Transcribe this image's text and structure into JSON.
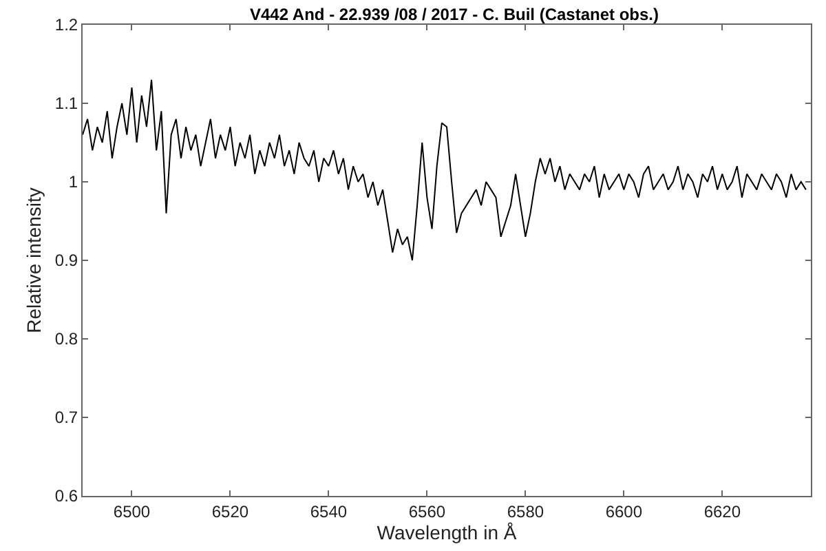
{
  "chart_data": {
    "type": "line",
    "title": "V442 And - 22.939 /08 / 2017 - C. Buil (Castanet obs.)",
    "xlabel": "Wavelength in Å",
    "ylabel": "Relative intensity",
    "x": [
      6490,
      6491,
      6492,
      6493,
      6494,
      6495,
      6496,
      6497,
      6498,
      6499,
      6500,
      6501,
      6502,
      6503,
      6504,
      6505,
      6506,
      6507,
      6508,
      6509,
      6510,
      6511,
      6512,
      6513,
      6514,
      6515,
      6516,
      6517,
      6518,
      6519,
      6520,
      6521,
      6522,
      6523,
      6524,
      6525,
      6526,
      6527,
      6528,
      6529,
      6530,
      6531,
      6532,
      6533,
      6534,
      6535,
      6536,
      6537,
      6538,
      6539,
      6540,
      6541,
      6542,
      6543,
      6544,
      6545,
      6546,
      6547,
      6548,
      6549,
      6550,
      6551,
      6552,
      6553,
      6554,
      6555,
      6556,
      6557,
      6558,
      6559,
      6560,
      6561,
      6562,
      6563,
      6564,
      6565,
      6566,
      6567,
      6568,
      6569,
      6570,
      6571,
      6572,
      6573,
      6574,
      6575,
      6576,
      6577,
      6578,
      6579,
      6580,
      6581,
      6582,
      6583,
      6584,
      6585,
      6586,
      6587,
      6588,
      6589,
      6590,
      6591,
      6592,
      6593,
      6594,
      6595,
      6596,
      6597,
      6598,
      6599,
      6600,
      6601,
      6602,
      6603,
      6604,
      6605,
      6606,
      6607,
      6608,
      6609,
      6610,
      6611,
      6612,
      6613,
      6614,
      6615,
      6616,
      6617,
      6618,
      6619,
      6620,
      6621,
      6622,
      6623,
      6624,
      6625,
      6626,
      6627,
      6628,
      6629,
      6630,
      6631,
      6632,
      6633,
      6634,
      6635,
      6636,
      6637
    ],
    "series": [
      {
        "color": "#000000",
        "values": [
          1.06,
          1.08,
          1.04,
          1.07,
          1.05,
          1.09,
          1.03,
          1.07,
          1.1,
          1.06,
          1.12,
          1.05,
          1.11,
          1.07,
          1.13,
          1.04,
          1.09,
          0.96,
          1.06,
          1.08,
          1.03,
          1.07,
          1.04,
          1.06,
          1.02,
          1.05,
          1.08,
          1.03,
          1.06,
          1.04,
          1.07,
          1.02,
          1.05,
          1.03,
          1.06,
          1.01,
          1.04,
          1.02,
          1.05,
          1.03,
          1.06,
          1.02,
          1.04,
          1.01,
          1.05,
          1.03,
          1.02,
          1.04,
          1.0,
          1.03,
          1.02,
          1.04,
          1.01,
          1.03,
          0.99,
          1.02,
          1.0,
          1.01,
          0.98,
          1.0,
          0.97,
          0.99,
          0.95,
          0.91,
          0.94,
          0.92,
          0.93,
          0.9,
          0.97,
          1.05,
          0.98,
          0.94,
          1.02,
          1.075,
          1.07,
          1.0,
          0.935,
          0.96,
          0.97,
          0.98,
          0.99,
          0.97,
          1.0,
          0.99,
          0.98,
          0.93,
          0.95,
          0.97,
          1.01,
          0.97,
          0.93,
          0.96,
          1.0,
          1.03,
          1.01,
          1.03,
          1.0,
          1.02,
          0.99,
          1.01,
          1.0,
          0.99,
          1.01,
          1.0,
          1.02,
          0.98,
          1.01,
          0.99,
          1.0,
          1.01,
          0.99,
          1.01,
          1.0,
          0.98,
          1.01,
          1.02,
          0.99,
          1.0,
          1.01,
          0.99,
          1.0,
          1.02,
          0.99,
          1.01,
          1.0,
          0.98,
          1.01,
          1.0,
          1.02,
          0.99,
          1.01,
          0.99,
          1.0,
          1.02,
          0.98,
          1.01,
          1.0,
          0.99,
          1.01,
          1.0,
          0.99,
          1.01,
          1.0,
          0.98,
          1.01,
          0.99,
          1.0,
          0.99
        ]
      }
    ],
    "xlim": [
      6490,
      6638
    ],
    "xticks": [
      6500,
      6520,
      6540,
      6560,
      6580,
      6600,
      6620
    ],
    "ylim": [
      0.6,
      1.2
    ],
    "yticks": [
      0.6,
      0.7,
      0.8,
      0.9,
      1,
      1.1,
      1.2
    ],
    "marker": "none",
    "line_style": "solid"
  }
}
